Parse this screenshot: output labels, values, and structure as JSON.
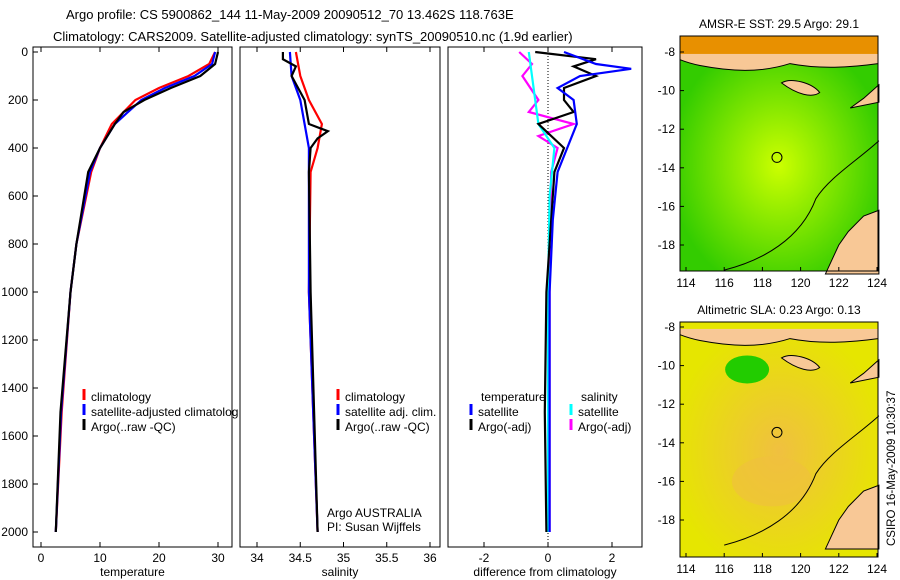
{
  "header": {
    "line1": "Argo profile: CS 5900862_144 11-May-2009 20090512_70 13.462S 118.763E",
    "line2": "Climatology: CARS2009. Satellite-adjusted climatology: synTS_20090510.nc (1.9d earlier)"
  },
  "side_label": "CSIRO 16-May-2009 10:30:37",
  "chart_data": [
    {
      "type": "line",
      "id": "temperature",
      "xlabel": "temperature",
      "ylabel": "",
      "xlim": [
        -1.5,
        32
      ],
      "ylim": [
        2000,
        0
      ],
      "xticks": [
        "0",
        "10",
        "20",
        "30"
      ],
      "xtick_values": [
        0,
        10,
        20,
        30
      ],
      "yticks": [
        "0",
        "200",
        "400",
        "600",
        "800",
        "1000",
        "1200",
        "1400",
        "1600",
        "1800",
        "2000"
      ],
      "ytick_values": [
        0,
        200,
        400,
        600,
        800,
        1000,
        1200,
        1400,
        1600,
        1800,
        2000
      ],
      "legend": [
        "climatology",
        "satellite-adjusted climatolog",
        "Argo(..raw -QC)"
      ],
      "series": [
        {
          "name": "climatology",
          "color": "#ff0000",
          "depth": [
            0,
            50,
            100,
            150,
            200,
            300,
            400,
            500,
            800,
            1000,
            1500,
            2000
          ],
          "values": [
            29.5,
            28.5,
            25,
            20,
            16,
            12,
            10,
            8.5,
            6,
            5,
            3.5,
            2.5
          ]
        },
        {
          "name": "satellite-adjusted climatology",
          "color": "#0000ff",
          "depth": [
            0,
            50,
            100,
            150,
            200,
            300,
            400,
            500,
            800,
            1000,
            1500,
            2000
          ],
          "values": [
            29.5,
            29,
            26,
            21,
            17,
            12.5,
            10,
            8.3,
            6,
            5,
            3.4,
            2.5
          ]
        },
        {
          "name": "Argo(..raw -QC)",
          "color": "#000000",
          "depth": [
            0,
            50,
            100,
            150,
            200,
            250,
            300,
            400,
            500,
            800,
            1000,
            1500,
            2000
          ],
          "values": [
            30,
            29.5,
            27,
            22,
            17.5,
            14,
            12.5,
            10,
            8,
            6,
            5,
            3.3,
            2.5
          ]
        }
      ]
    },
    {
      "type": "line",
      "id": "salinity",
      "xlabel": "salinity",
      "xlim": [
        33.8,
        36.1
      ],
      "ylim": [
        2000,
        0
      ],
      "xticks": [
        "34",
        "34.5",
        "35",
        "35.5",
        "36"
      ],
      "xtick_values": [
        34,
        34.5,
        35,
        35.5,
        36
      ],
      "legend": [
        "climatology",
        "satellite adj. clim.",
        "Argo(..raw -QC)"
      ],
      "annotations": [
        "Argo AUSTRALIA",
        "PI: Susan Wijffels"
      ],
      "series": [
        {
          "name": "climatology",
          "color": "#ff0000",
          "depth": [
            0,
            100,
            200,
            300,
            400,
            500,
            1000,
            1500,
            2000
          ],
          "values": [
            34.45,
            34.5,
            34.6,
            34.75,
            34.7,
            34.62,
            34.6,
            34.65,
            34.7
          ]
        },
        {
          "name": "satellite adj. clim.",
          "color": "#0000ff",
          "depth": [
            0,
            100,
            200,
            300,
            400,
            500,
            1000,
            1500,
            2000
          ],
          "values": [
            34.38,
            34.4,
            34.5,
            34.55,
            34.6,
            34.6,
            34.6,
            34.65,
            34.7
          ]
        },
        {
          "name": "Argo(..raw -QC)",
          "color": "#000000",
          "depth": [
            0,
            30,
            60,
            100,
            200,
            300,
            330,
            360,
            400,
            500,
            1000,
            2000
          ],
          "values": [
            34.3,
            34.3,
            34.45,
            34.4,
            34.55,
            34.6,
            34.82,
            34.7,
            34.62,
            34.6,
            34.62,
            34.7
          ]
        }
      ]
    },
    {
      "type": "line",
      "id": "difference",
      "xlabel": "difference from climatology",
      "xlim": [
        -3.1,
        3
      ],
      "ylim": [
        2000,
        0
      ],
      "xticks": [
        "-2",
        "0",
        "2"
      ],
      "xtick_values": [
        -2,
        0,
        2
      ],
      "legend_headers": [
        "temperature",
        "salinity"
      ],
      "legend": [
        "satellite",
        "Argo(-adj)",
        "satellite",
        "Argo(-adj)"
      ],
      "series": [
        {
          "name": "temperature satellite",
          "color": "#0000ff",
          "depth": [
            0,
            50,
            70,
            100,
            150,
            200,
            300,
            400,
            500,
            700,
            1000,
            2000
          ],
          "values": [
            0.5,
            1.5,
            2.6,
            1.0,
            0.3,
            0.8,
            0.9,
            0.6,
            0.3,
            0.15,
            0.05,
            0.05
          ]
        },
        {
          "name": "temperature Argo(-adj)",
          "color": "#000000",
          "depth": [
            0,
            30,
            60,
            100,
            150,
            200,
            250,
            300,
            400,
            500,
            700,
            1000,
            1500,
            2000
          ],
          "values": [
            -0.4,
            1.5,
            0.8,
            1.5,
            0.5,
            0.5,
            0.8,
            -0.3,
            0.5,
            0.2,
            0.1,
            -0.05,
            -0.1,
            -0.05
          ]
        },
        {
          "name": "salinity satellite",
          "color": "#00ffff",
          "depth": [
            0,
            100,
            200,
            300,
            400,
            600,
            1000,
            2000
          ],
          "values": [
            -0.6,
            -0.5,
            -0.4,
            -0.3,
            0.2,
            0.05,
            0,
            0
          ]
        },
        {
          "name": "salinity Argo(-adj)",
          "color": "#ff00ff",
          "depth": [
            0,
            50,
            100,
            200,
            250,
            300,
            350,
            400,
            500,
            800,
            2000
          ],
          "values": [
            -0.9,
            -0.5,
            -0.8,
            -0.3,
            -0.6,
            0.8,
            -0.3,
            0.3,
            0.1,
            0.05,
            0.05
          ]
        }
      ]
    },
    {
      "type": "heatmap",
      "id": "sst-map",
      "title": "AMSR-E SST: 29.5 Argo: 29.1",
      "xticks": [
        "114",
        "116",
        "118",
        "120",
        "122",
        "124"
      ],
      "xtick_values": [
        114,
        116,
        118,
        120,
        122,
        124
      ],
      "yticks": [
        "-8",
        "-10",
        "-12",
        "-14",
        "-16",
        "-18"
      ],
      "ytick_values": [
        -8,
        -10,
        -12,
        -14,
        -16,
        -18
      ],
      "xlim": [
        113.7,
        124.1
      ],
      "ylim": [
        -19.5,
        -7.3
      ],
      "marker": {
        "lon": 118.763,
        "lat": -13.462
      },
      "base_color": "#33cc00",
      "center_color": "#ccff00"
    },
    {
      "type": "heatmap",
      "id": "sla-map",
      "title": "Altimetric SLA: 0.23 Argo: 0.13",
      "xticks": [
        "114",
        "116",
        "118",
        "120",
        "122",
        "124"
      ],
      "xtick_values": [
        114,
        116,
        118,
        120,
        122,
        124
      ],
      "yticks": [
        "-8",
        "-10",
        "-12",
        "-14",
        "-16",
        "-18"
      ],
      "ytick_values": [
        -8,
        -10,
        -12,
        -14,
        -16,
        -18
      ],
      "xlim": [
        113.7,
        124.1
      ],
      "ylim": [
        -19.5,
        -7.3
      ],
      "marker": {
        "lon": 118.763,
        "lat": -13.462
      },
      "base_color": "#e6e600",
      "center_color": "#f0c040"
    }
  ]
}
